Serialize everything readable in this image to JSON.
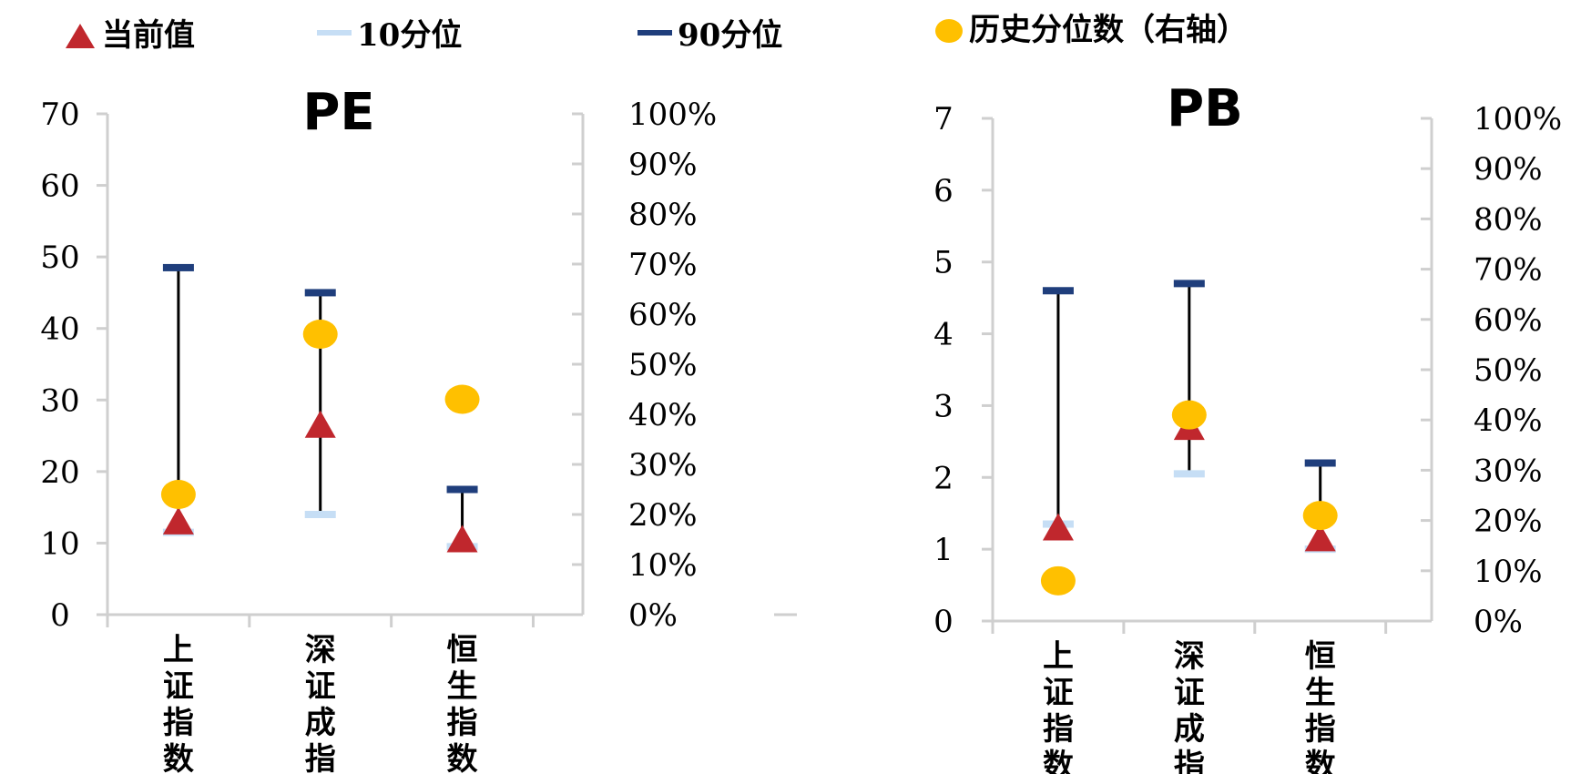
{
  "legend": {
    "current": "当前值",
    "p10": "10分位",
    "p90": "90分位",
    "hist": "历史分位数（右轴）"
  },
  "colors": {
    "current": "#c0272d",
    "p10": "#c6def5",
    "p90": "#1f3e7c",
    "hist": "#ffc000",
    "range": "#000000"
  },
  "chart_data": [
    {
      "type": "scatter",
      "title": "PE",
      "categories": [
        "上证指数",
        "深证成指",
        "恒生指数"
      ],
      "y_left": {
        "lim": [
          0,
          70
        ],
        "ticks": [
          "0",
          "10",
          "20",
          "30",
          "40",
          "50",
          "60",
          "70"
        ]
      },
      "y_right": {
        "lim": [
          0,
          1
        ],
        "ticks": [
          "0%",
          "10%",
          "20%",
          "30%",
          "40%",
          "50%",
          "60%",
          "70%",
          "80%",
          "90%",
          "100%"
        ]
      },
      "series": [
        {
          "name": "当前值",
          "values": [
            13,
            26.5,
            10.5
          ]
        },
        {
          "name": "10分位",
          "values": [
            11.5,
            14,
            9.5
          ]
        },
        {
          "name": "90分位",
          "values": [
            48.5,
            45,
            17.5
          ]
        },
        {
          "name": "历史分位数（右轴）",
          "values": [
            0.24,
            0.56,
            0.43
          ]
        }
      ]
    },
    {
      "type": "scatter",
      "title": "PB",
      "categories": [
        "上证指数",
        "深证成指",
        "恒生指数"
      ],
      "y_left": {
        "lim": [
          0,
          7
        ],
        "ticks": [
          "0",
          "1",
          "2",
          "3",
          "4",
          "5",
          "6",
          "7"
        ]
      },
      "y_right": {
        "lim": [
          0,
          1
        ],
        "ticks": [
          "0%",
          "10%",
          "20%",
          "30%",
          "40%",
          "50%",
          "60%",
          "70%",
          "80%",
          "90%",
          "100%"
        ]
      },
      "series": [
        {
          "name": "当前值",
          "values": [
            1.3,
            2.7,
            1.15
          ]
        },
        {
          "name": "10分位",
          "values": [
            1.35,
            2.05,
            1.0
          ]
        },
        {
          "name": "90分位",
          "values": [
            4.6,
            4.7,
            2.2
          ]
        },
        {
          "name": "历史分位数（右轴）",
          "values": [
            0.08,
            0.41,
            0.21
          ]
        }
      ]
    }
  ]
}
